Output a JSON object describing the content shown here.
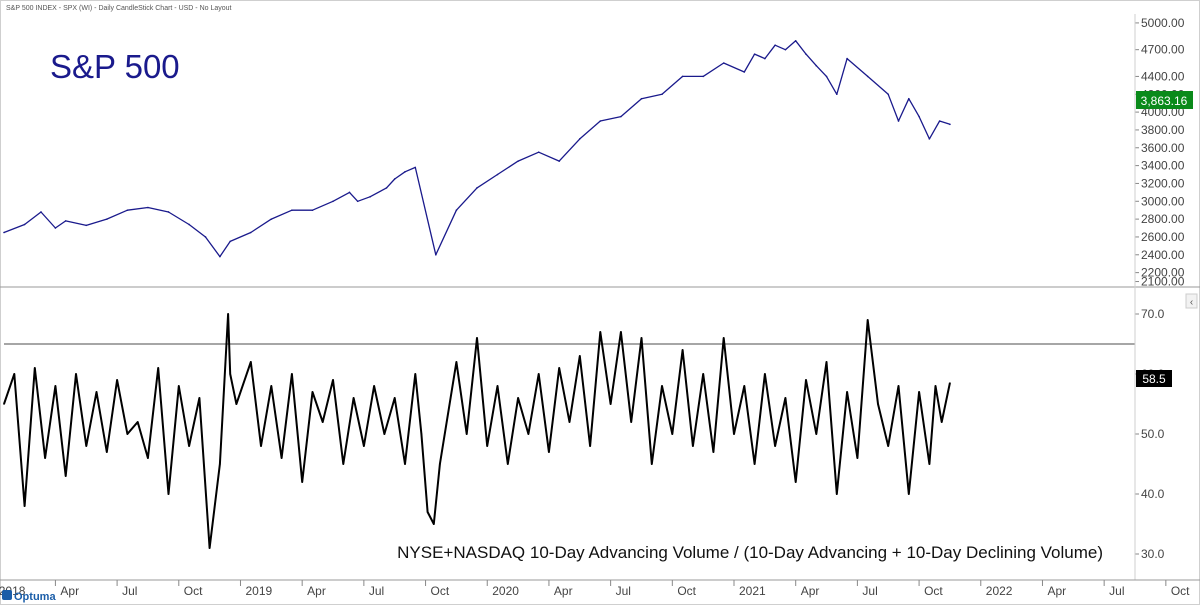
{
  "header": {
    "caption": "S&P 500 INDEX - SPX (WI) - Daily CandleStick Chart - USD - No Layout"
  },
  "branding": {
    "name": "Optuma"
  },
  "colors": {
    "price_line": "#1a1a8c",
    "oscillator_line": "#000000",
    "threshold_line": "#888888",
    "price_badge_bg": "#0a8a1a",
    "osc_badge_bg": "#000000",
    "grid": "#bbbbbb",
    "text": "#444444"
  },
  "chart_data": [
    {
      "id": "price_panel",
      "type": "line",
      "title": "S&P 500",
      "ylabel": "",
      "ylim": [
        2050,
        5100
      ],
      "y_ticks": [
        2100,
        2200,
        2400,
        2600,
        2800,
        3000,
        3200,
        3400,
        3600,
        3800,
        4000,
        4200,
        4400,
        4700,
        5000
      ],
      "y_tick_labels": [
        "2100.00",
        "2200.00",
        "2400.00",
        "2600.00",
        "2800.00",
        "3000.00",
        "3200.00",
        "3400.00",
        "3600.00",
        "3800.00",
        "4000.00",
        "4200.00",
        "4400.00",
        "4700.00",
        "5000.00"
      ],
      "last_value_label": "3,863.16",
      "x": [
        0,
        1,
        1.8,
        2.5,
        3,
        4,
        5,
        6,
        7,
        8,
        9,
        9.8,
        10.5,
        11,
        12,
        13,
        14,
        15,
        16,
        16.8,
        17.2,
        17.8,
        18.6,
        19,
        19.5,
        20,
        21,
        22,
        23,
        24,
        25,
        26,
        27,
        28,
        29,
        30,
        31,
        32,
        33,
        34,
        35,
        36,
        36.5,
        37,
        37.5,
        38,
        38.5,
        39,
        39.5,
        40,
        40.5,
        41,
        42,
        43,
        43.5,
        44,
        44.5,
        45,
        45.5,
        46
      ],
      "values": [
        2650,
        2740,
        2880,
        2700,
        2780,
        2730,
        2800,
        2900,
        2930,
        2880,
        2740,
        2600,
        2380,
        2550,
        2650,
        2800,
        2900,
        2900,
        3000,
        3100,
        3000,
        3050,
        3150,
        3250,
        3330,
        3380,
        2400,
        2900,
        3150,
        3300,
        3450,
        3550,
        3450,
        3700,
        3900,
        3950,
        4150,
        4200,
        4400,
        4400,
        4550,
        4450,
        4650,
        4600,
        4750,
        4700,
        4800,
        4650,
        4520,
        4400,
        4200,
        4600,
        4400,
        4200,
        3900,
        4150,
        3950,
        3700,
        3900,
        3863
      ]
    },
    {
      "id": "breadth_panel",
      "type": "line",
      "title": "NYSE+NASDAQ 10-Day Advancing Volume / (10-Day Advancing + 10-Day Declining Volume)",
      "ylabel": "",
      "ylim": [
        26,
        74
      ],
      "y_ticks": [
        30,
        40,
        50,
        60,
        70
      ],
      "y_tick_labels": [
        "30.0",
        "40.0",
        "50.0",
        "60.0",
        "70.0"
      ],
      "threshold": 65,
      "last_value_label": "58.5",
      "x": [
        0,
        0.5,
        1,
        1.5,
        2,
        2.5,
        3,
        3.5,
        4,
        4.5,
        5,
        5.5,
        6,
        6.5,
        7,
        7.5,
        8,
        8.5,
        9,
        9.5,
        10,
        10.5,
        10.9,
        11,
        11.3,
        12,
        12.5,
        13,
        13.5,
        14,
        14.5,
        15,
        15.5,
        16,
        16.5,
        17,
        17.5,
        18,
        18.5,
        19,
        19.5,
        20,
        20.3,
        20.6,
        20.9,
        21.2,
        22,
        22.5,
        23,
        23.5,
        24,
        24.5,
        25,
        25.5,
        26,
        26.5,
        27,
        27.5,
        28,
        28.5,
        29,
        29.5,
        30,
        30.5,
        31,
        31.5,
        32,
        32.5,
        33,
        33.5,
        34,
        34.5,
        35,
        35.5,
        36,
        36.5,
        37,
        37.5,
        38,
        38.5,
        39,
        39.5,
        40,
        40.5,
        41,
        41.5,
        42,
        42.5,
        43,
        43.5,
        44,
        44.5,
        45,
        45.3,
        45.6,
        46
      ],
      "values": [
        55,
        60,
        38,
        61,
        46,
        58,
        43,
        60,
        48,
        57,
        47,
        59,
        50,
        52,
        46,
        61,
        40,
        58,
        48,
        56,
        31,
        45,
        70,
        60,
        55,
        62,
        48,
        58,
        46,
        60,
        42,
        57,
        52,
        59,
        45,
        56,
        48,
        58,
        50,
        56,
        45,
        60,
        50,
        37,
        35,
        45,
        62,
        50,
        66,
        48,
        58,
        45,
        56,
        50,
        60,
        47,
        61,
        52,
        63,
        48,
        67,
        55,
        67,
        52,
        66,
        45,
        58,
        50,
        64,
        48,
        60,
        47,
        66,
        50,
        58,
        45,
        60,
        48,
        56,
        42,
        59,
        50,
        62,
        40,
        57,
        46,
        69,
        55,
        48,
        58,
        40,
        57,
        45,
        58,
        52,
        58.5
      ]
    }
  ],
  "x_axis": {
    "tick_labels": [
      "2018",
      "Apr",
      "Jul",
      "Oct",
      "2019",
      "Apr",
      "Jul",
      "Oct",
      "2020",
      "Apr",
      "Jul",
      "Oct",
      "2021",
      "Apr",
      "Jul",
      "Oct",
      "2022",
      "Apr",
      "Jul",
      "Oct"
    ],
    "tick_positions": [
      -0.5,
      2.5,
      5.5,
      8.5,
      11.5,
      14.5,
      17.5,
      20.5,
      23.5,
      26.5,
      29.5,
      32.5,
      35.5,
      38.5,
      41.5,
      44.5,
      47.5,
      50.5,
      53.5,
      56.5
    ],
    "xlim": [
      0,
      55
    ]
  }
}
